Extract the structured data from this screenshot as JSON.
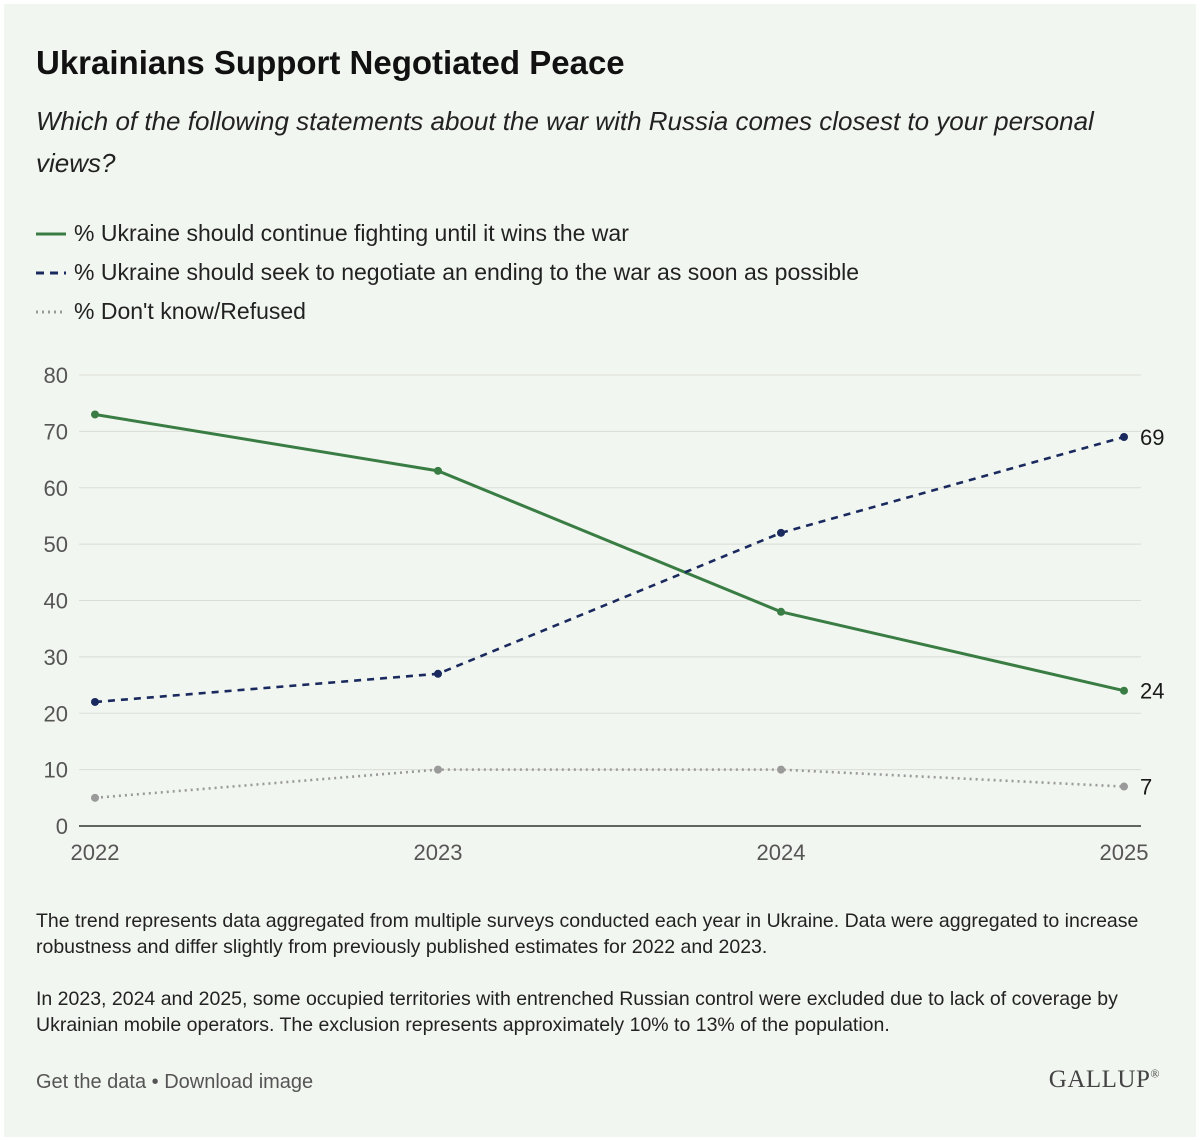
{
  "header": {
    "title": "Ukrainians Support Negotiated Peace",
    "subtitle": "Which of the following statements about the war with Russia comes closest to your personal views?"
  },
  "chart_data": {
    "type": "line",
    "x": [
      "2022",
      "2023",
      "2024",
      "2025"
    ],
    "series": [
      {
        "name": "% Ukraine should continue fighting until it wins the war",
        "values": [
          73,
          63,
          38,
          24
        ],
        "color": "#3a7d44",
        "style": "solid",
        "end_label": "24"
      },
      {
        "name": "% Ukraine should seek to negotiate an ending to the war as soon as possible",
        "values": [
          22,
          27,
          52,
          69
        ],
        "color": "#1b2a5e",
        "style": "dashed",
        "end_label": "69"
      },
      {
        "name": "% Don't know/Refused",
        "values": [
          5,
          10,
          10,
          7
        ],
        "color": "#9a9a9a",
        "style": "dotted",
        "end_label": "7"
      }
    ],
    "ylim": [
      0,
      80
    ],
    "yticks": [
      "0",
      "10",
      "20",
      "30",
      "40",
      "50",
      "60",
      "70",
      "80"
    ],
    "grid": true,
    "legend_position": "top-left"
  },
  "notes": {
    "note1": "The trend represents data aggregated from multiple surveys conducted each year in Ukraine. Data were aggregated to increase robustness and differ slightly from previously published estimates for 2022 and 2023.",
    "note2": "In 2023, 2024 and 2025, some occupied territories with entrenched Russian control were excluded due to lack of coverage by Ukrainian mobile operators. The exclusion represents approximately 10% to 13% of the population."
  },
  "footer": {
    "get_data": "Get the data",
    "separator": " • ",
    "download": "Download image",
    "logo": "GALLUP",
    "logo_mark": "®"
  }
}
